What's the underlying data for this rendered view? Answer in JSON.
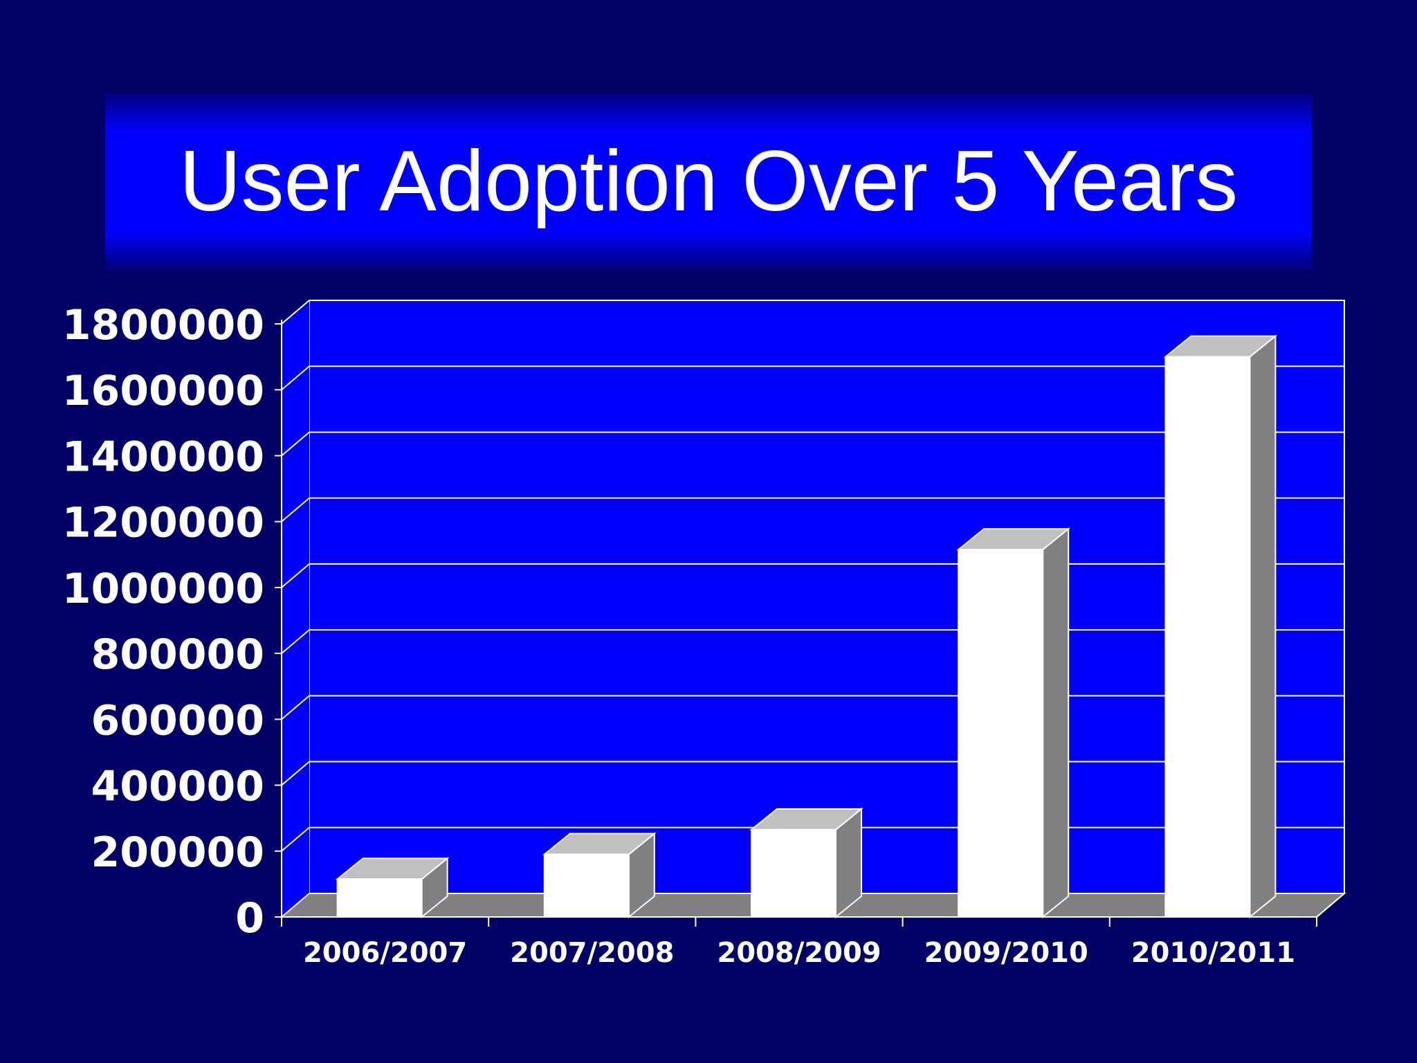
{
  "slide": {
    "title": "User Adoption Over 5 Years"
  },
  "colors": {
    "background": "#000066",
    "plot_area": "#0000ff",
    "bar_front": "#ffffff",
    "bar_top": "#c0c0c0",
    "bar_side": "#808080",
    "floor": "#808080",
    "gridline": "#ffffff",
    "text": "#ffffff"
  },
  "chart_data": {
    "type": "bar",
    "style": "3d-column",
    "title": "User Adoption Over 5 Years",
    "xlabel": "",
    "ylabel": "",
    "categories": [
      "2006/2007",
      "2007/2008",
      "2008/2009",
      "2009/2010",
      "2010/2011"
    ],
    "values": [
      115000,
      190000,
      265000,
      1115000,
      1700000
    ],
    "ylim": [
      0,
      1800000
    ],
    "yticks": [
      0,
      200000,
      400000,
      600000,
      800000,
      1000000,
      1200000,
      1400000,
      1600000,
      1800000
    ],
    "ytick_labels": [
      "0",
      "200000",
      "400000",
      "600000",
      "800000",
      "1000000",
      "1200000",
      "1400000",
      "1600000",
      "1800000"
    ],
    "grid": true,
    "legend": "none"
  }
}
